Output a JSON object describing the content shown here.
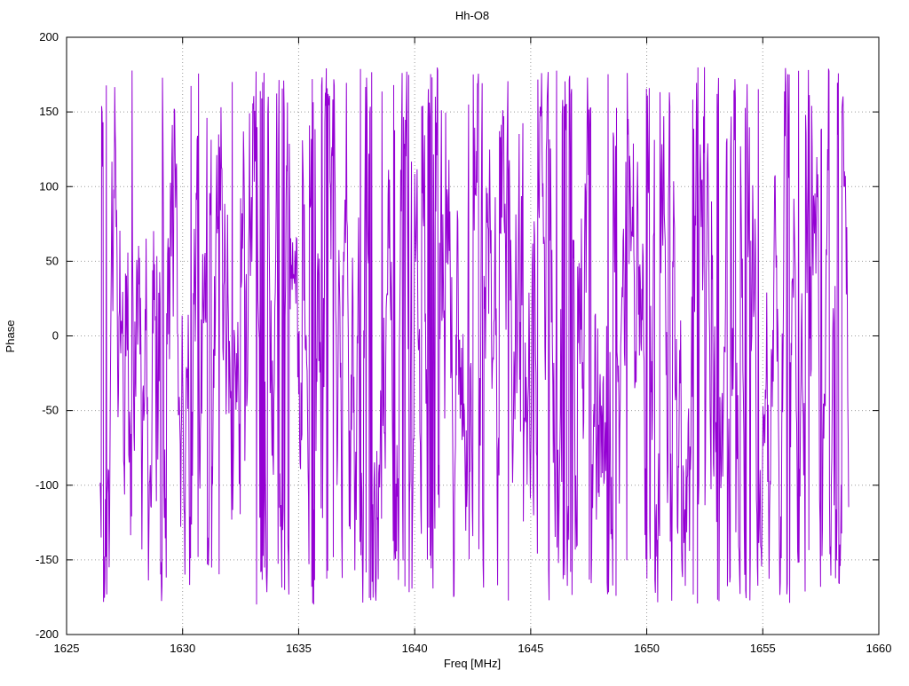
{
  "chart_data": {
    "type": "line",
    "title": "Hh-O8",
    "xlabel": "Freq [MHz]",
    "ylabel": "Phase",
    "xlim": [
      1625,
      1660
    ],
    "ylim": [
      -200,
      200
    ],
    "x_ticks": [
      1625,
      1630,
      1635,
      1640,
      1645,
      1650,
      1655,
      1660
    ],
    "y_ticks": [
      -200,
      -150,
      -100,
      -50,
      0,
      50,
      100,
      150,
      200
    ],
    "grid": true,
    "grid_style": "dotted",
    "grid_color": "#9a9a9a",
    "border_color": "#000000",
    "legend_position": "none",
    "series": [
      {
        "name": "phase",
        "color": "#9400d3",
        "description": "wrapped interferometric phase noise, values wrap between -180 and 180 degrees",
        "signal": "wrapped-random-walk",
        "x_start": 1626.45,
        "x_end": 1658.7,
        "n_points": 1600,
        "y_min": -180,
        "y_max": 180,
        "step_scale": 78,
        "spike_probability": 0.07,
        "seed": 987654321
      }
    ]
  }
}
